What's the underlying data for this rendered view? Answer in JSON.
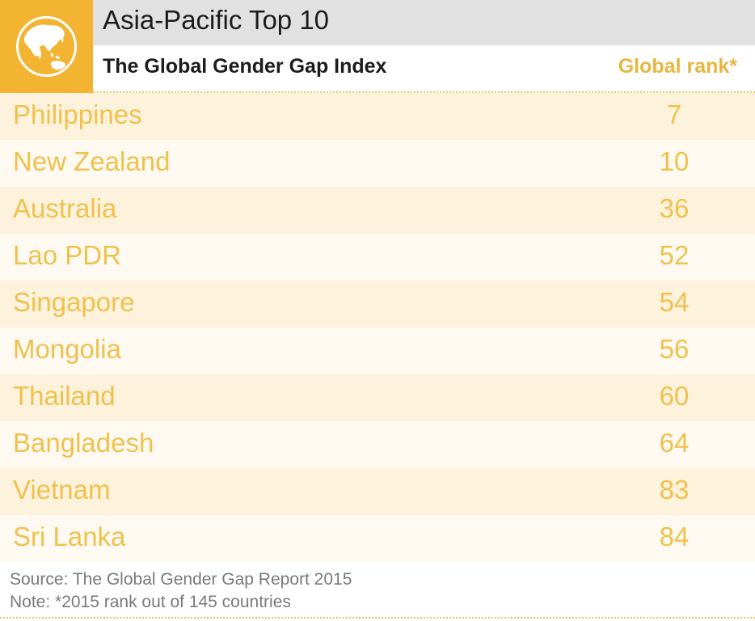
{
  "header": {
    "title": "Asia-Pacific Top 10",
    "subtitle": "The Global Gender Gap Index",
    "icon": "globe-asia-icon",
    "accent_color": "#f2b431"
  },
  "chart_data": {
    "type": "table",
    "title": "Asia-Pacific Top 10",
    "subtitle": "The Global Gender Gap Index",
    "columns": [
      "",
      "Global rank*"
    ],
    "rows": [
      {
        "country": "Philippines",
        "rank": 7
      },
      {
        "country": "New Zealand",
        "rank": 10
      },
      {
        "country": "Australia",
        "rank": 36
      },
      {
        "country": "Lao PDR",
        "rank": 52
      },
      {
        "country": "Singapore",
        "rank": 54
      },
      {
        "country": "Mongolia",
        "rank": 56
      },
      {
        "country": "Thailand",
        "rank": 60
      },
      {
        "country": "Bangladesh",
        "rank": 64
      },
      {
        "country": "Vietnam",
        "rank": 83
      },
      {
        "country": "Sri Lanka",
        "rank": 84
      }
    ]
  },
  "footer": {
    "source": "Source: The Global Gender Gap Report 2015",
    "note": "Note: *2015 rank out of 145 countries"
  },
  "colors": {
    "row_odd": "#fdf2dc",
    "row_even": "#fefaf1",
    "text_accent": "#f0c14d",
    "header_gray": "#e2e1e1"
  }
}
